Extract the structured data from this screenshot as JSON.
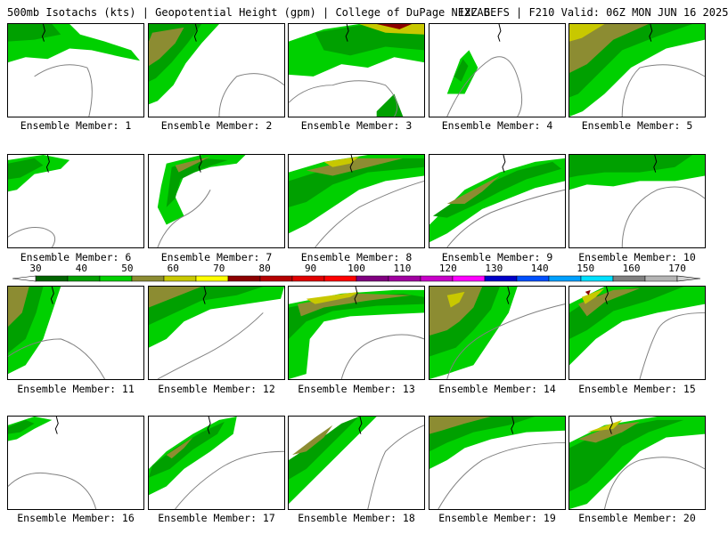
{
  "header": {
    "title": "500mb Isotachs (kts) | Geopotential Height (gpm) | College of DuPage NEXLAB",
    "run": "12Z GEFS | F210 Valid: 06Z MON JUN 16 2025"
  },
  "members": [
    {
      "label": "Ensemble Member: 1"
    },
    {
      "label": "Ensemble Member: 2"
    },
    {
      "label": "Ensemble Member: 3"
    },
    {
      "label": "Ensemble Member: 4"
    },
    {
      "label": "Ensemble Member: 5"
    },
    {
      "label": "Ensemble Member: 6"
    },
    {
      "label": "Ensemble Member: 7"
    },
    {
      "label": "Ensemble Member: 8"
    },
    {
      "label": "Ensemble Member: 9"
    },
    {
      "label": "Ensemble Member: 10"
    },
    {
      "label": "Ensemble Member: 11"
    },
    {
      "label": "Ensemble Member: 12"
    },
    {
      "label": "Ensemble Member: 13"
    },
    {
      "label": "Ensemble Member: 14"
    },
    {
      "label": "Ensemble Member: 15"
    },
    {
      "label": "Ensemble Member: 16"
    },
    {
      "label": "Ensemble Member: 17"
    },
    {
      "label": "Ensemble Member: 18"
    },
    {
      "label": "Ensemble Member: 19"
    },
    {
      "label": "Ensemble Member: 20"
    }
  ],
  "colorbar": {
    "ticks": [
      "30",
      "40",
      "50",
      "60",
      "70",
      "80",
      "90",
      "100",
      "110",
      "120",
      "130",
      "140",
      "150",
      "160",
      "170"
    ],
    "colors": [
      "#006400",
      "#00a000",
      "#00d000",
      "#8c8c32",
      "#c8c800",
      "#ffff00",
      "#8c0000",
      "#b40000",
      "#e00000",
      "#ff0000",
      "#800080",
      "#a000a0",
      "#c800c8",
      "#ff00ff",
      "#0000c8",
      "#0050ff",
      "#00a0ff",
      "#00e0ff",
      "#808080",
      "#b4b4b4"
    ]
  },
  "colors": {
    "green_dark": "#006400",
    "green_mid": "#00a000",
    "green_light": "#00d000",
    "olive": "#8c8c32",
    "yellow": "#c8c800",
    "bright_yellow": "#ffff00",
    "dark_red": "#8c0000",
    "coast": "#808080"
  }
}
